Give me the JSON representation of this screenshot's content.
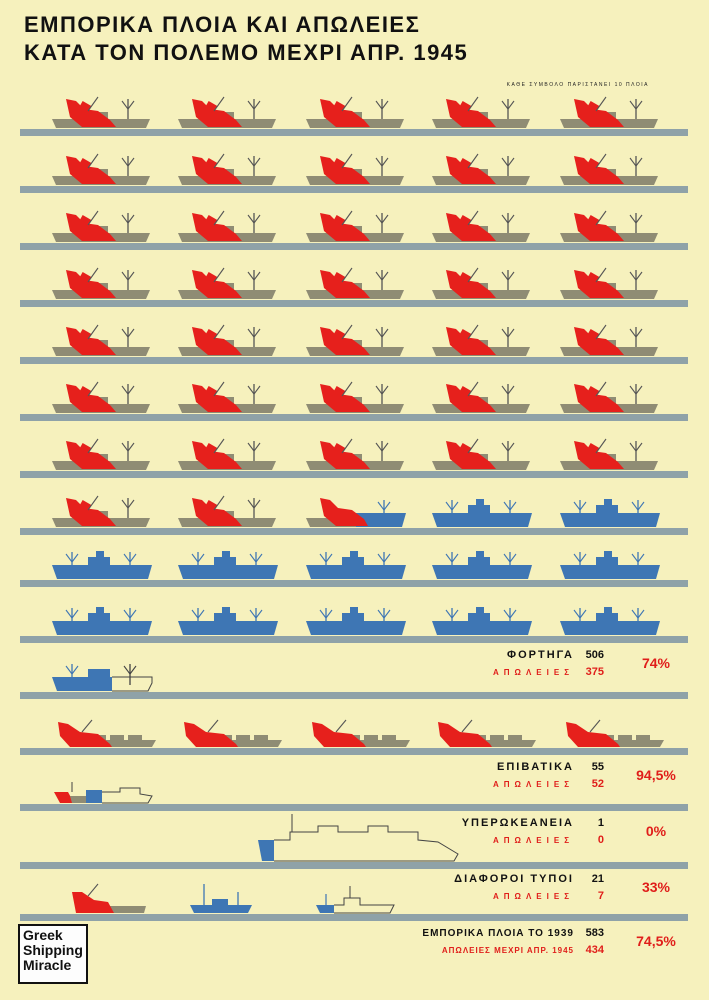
{
  "title_line1": "ΕΜΠΟΡΙΚΑ ΠΛΟΙΑ ΚΑΙ ΑΠΩΛΕΙΕΣ",
  "title_line2": "ΚΑΤΑ ΤΟΝ ΠΟΛΕΜΟ ΜΕΧΡΙ ΑΠΡ. 1945",
  "scale_note": "ΚΑΘΕ ΣΥΜΒΟΛΟ ΠΑΡΙΣΤΑΝΕΙ 10 ΠΛΟΙΑ",
  "logo": [
    "Greek",
    "Shipping",
    "Miracle"
  ],
  "colors": {
    "background": "#f6f1bd",
    "waterline": "#8fa2a8",
    "lost_red": "#e6201c",
    "lost_hull_olive": "#8f8c74",
    "surviving_blue": "#3e76b4",
    "outline": "#444444",
    "label_red": "#e01e1a"
  },
  "chart_data": {
    "type": "table",
    "unit_note": "ΚΑΘΕ ΣΥΜΒΟΛΟ ΠΑΡΙΣΤΑΝΕΙ 10 ΠΛΟΙΑ",
    "categories": [
      {
        "name": "ΦΟΡΤΗΓΑ",
        "loss_label": "ΑΠΩΛΕΙΕΣ",
        "total": 506,
        "losses": 375,
        "percent_text": "74%",
        "symbol": "cargo",
        "lost_full": 37,
        "lost_partial": 1,
        "surviving_full": 12,
        "surviving_partial": 1
      },
      {
        "name": "ΕΠΙΒΑΤΙΚΑ",
        "loss_label": "ΑΠΩΛΕΙΕΣ",
        "total": 55,
        "losses": 52,
        "percent_text": "94,5%",
        "symbol": "passenger",
        "lost_full": 5,
        "lost_partial": 1,
        "surviving_full": 0,
        "surviving_partial": 1
      },
      {
        "name": "ΥΠΕΡΩΚΕΑΝΕΙΑ",
        "loss_label": "ΑΠΩΛΕΙΕΣ",
        "total": 1,
        "losses": 0,
        "percent_text": "0%",
        "symbol": "liner",
        "lost_full": 0,
        "lost_partial": 0,
        "surviving_full": 0,
        "surviving_partial": 1
      },
      {
        "name": "ΔΙΑΦΟΡΟΙ ΤΥΠΟΙ",
        "loss_label": "ΑΠΩΛΕΙΕΣ",
        "total": 21,
        "losses": 7,
        "percent_text": "33%",
        "symbol": "misc",
        "lost_full": 0,
        "lost_partial": 1,
        "surviving_full": 1,
        "surviving_partial": 1
      }
    ],
    "totals": {
      "label": "ΕΜΠΟΡΙΚΑ ΠΛΟΙΑ ΤΟ 1939",
      "loss_label": "ΑΠΩΛΕΙΕΣ ΜΕΧΡΙ ΑΠΡ. 1945",
      "total": 583,
      "losses": 434,
      "percent_text": "74,5%"
    }
  }
}
